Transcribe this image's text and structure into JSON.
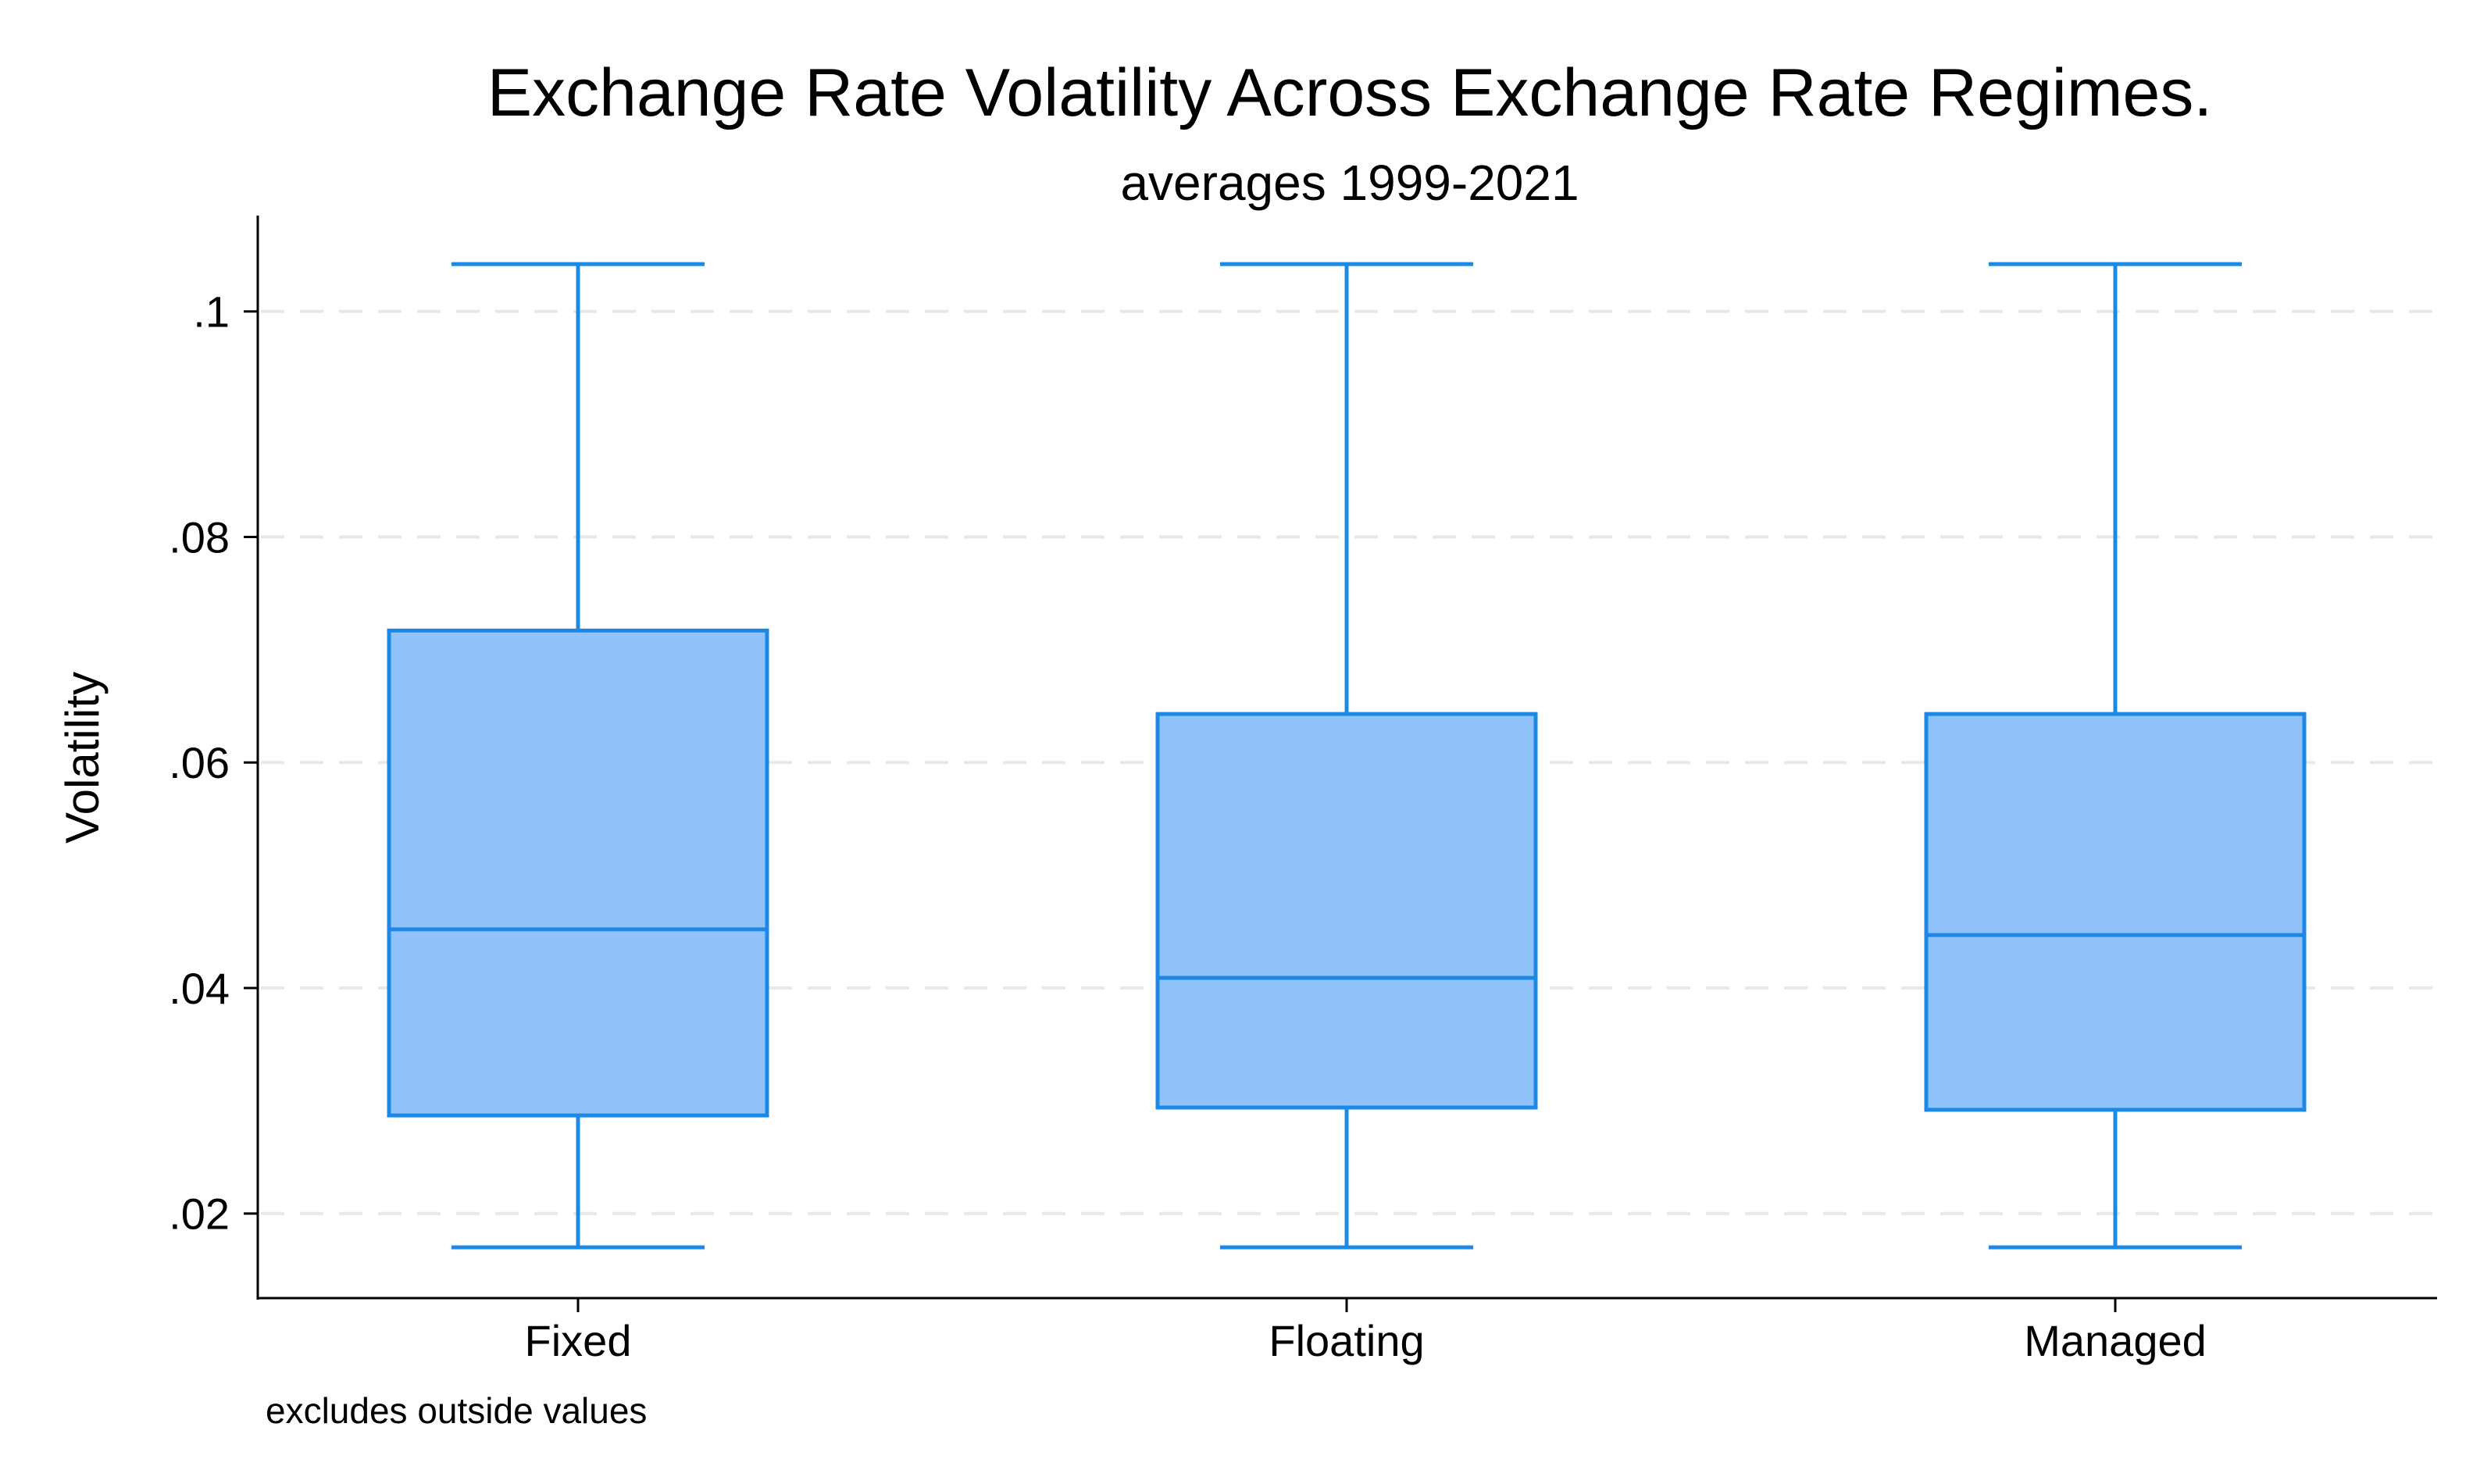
{
  "chart_data": {
    "type": "box",
    "title": "Exchange Rate Volatility Across Exchange Rate Regimes.",
    "subtitle": "averages 1999-2021",
    "ylabel": "Volatility",
    "xlabel": "",
    "note": "excludes outside values",
    "ylim": [
      0.0125,
      0.1085
    ],
    "yticks": [
      0.02,
      0.04,
      0.06,
      0.08,
      0.1
    ],
    "ytick_labels": [
      ".02",
      ".04",
      ".06",
      ".08",
      ".1"
    ],
    "grid": true,
    "legend": "none",
    "categories": [
      "Fixed",
      "Floating",
      "Managed"
    ],
    "boxes": [
      {
        "category": "Fixed",
        "whisker_low": 0.017,
        "q1": 0.0287,
        "median": 0.0452,
        "q3": 0.0717,
        "whisker_high": 0.1042
      },
      {
        "category": "Floating",
        "whisker_low": 0.017,
        "q1": 0.0294,
        "median": 0.0409,
        "q3": 0.0643,
        "whisker_high": 0.1042
      },
      {
        "category": "Managed",
        "whisker_low": 0.017,
        "q1": 0.0292,
        "median": 0.0447,
        "q3": 0.0643,
        "whisker_high": 0.1042
      }
    ],
    "colors": {
      "box_fill": "#90C2FB",
      "box_stroke": "#1E88E5"
    }
  }
}
